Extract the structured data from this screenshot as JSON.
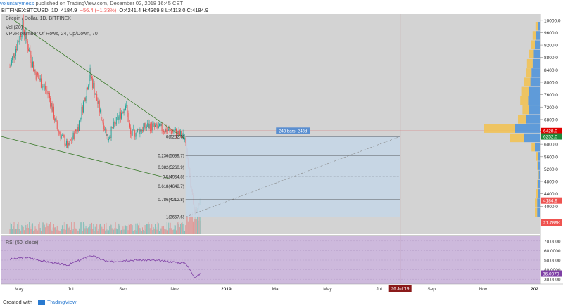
{
  "header": {
    "author": "voluntarymess",
    "published_text": "published on TradingView.com, December 02, 2018 16:45 CET"
  },
  "symbol_bar": {
    "symbol": "BITFINEX:BTCUSD, 1D",
    "last": "4184.9",
    "change": "−56.4 (−1.33%)",
    "ohlc": "O:4241.4 H:4369.8 L:4113.0 C:4184.9"
  },
  "legend": {
    "title": "Bitcoin / Dollar, 1D, BITFINEX",
    "vol": "Vol (20)",
    "vpvr": "VPVR Number Of Rows, 24, Up/Down, 70",
    "rsi": "RSI (50, close)"
  },
  "footer": {
    "created_with": "Created with",
    "brand": "TradingView"
  },
  "colors": {
    "up": "#26a69a",
    "down": "#ef5350",
    "pane_bg": "#d3d3d3",
    "rsi_bg": "#cdb9dc",
    "rsi_line": "#7e3fa5",
    "fib_fill": "#c5d6e6",
    "vpvr_up": "#4a90d9",
    "vpvr_down": "#f2c14e",
    "trendline": "#3a7a2a",
    "hline": "#e00000"
  },
  "chart_data": {
    "type": "candlestick",
    "title": "Bitcoin / Dollar, 1D, BITFINEX",
    "x_ticks": [
      "May",
      "Jul",
      "Sep",
      "Nov",
      "2019",
      "Mar",
      "May",
      "Jul",
      "Sep",
      "Nov",
      "202"
    ],
    "y_ticks": [
      4000,
      4400,
      4800,
      5200,
      5600,
      6000,
      6400,
      6800,
      7200,
      7600,
      8000,
      8400,
      8800,
      9200,
      9600,
      10000
    ],
    "ylim": [
      3100,
      10200
    ],
    "price_path": [
      {
        "date": "2018-04-20",
        "price": 8500
      },
      {
        "date": "2018-05-05",
        "price": 9800
      },
      {
        "date": "2018-05-20",
        "price": 8300
      },
      {
        "date": "2018-06-05",
        "price": 7600
      },
      {
        "date": "2018-06-15",
        "price": 6500
      },
      {
        "date": "2018-06-28",
        "price": 5900
      },
      {
        "date": "2018-07-10",
        "price": 6600
      },
      {
        "date": "2018-07-24",
        "price": 8300
      },
      {
        "date": "2018-08-05",
        "price": 7000
      },
      {
        "date": "2018-08-14",
        "price": 6200
      },
      {
        "date": "2018-09-04",
        "price": 7300
      },
      {
        "date": "2018-09-10",
        "price": 6300
      },
      {
        "date": "2018-10-01",
        "price": 6600
      },
      {
        "date": "2018-10-15",
        "price": 6500
      },
      {
        "date": "2018-11-01",
        "price": 6400
      },
      {
        "date": "2018-11-14",
        "price": 6200
      },
      {
        "date": "2018-11-20",
        "price": 4600
      },
      {
        "date": "2018-11-25",
        "price": 3800
      },
      {
        "date": "2018-12-02",
        "price": 4184.9
      }
    ],
    "price_labels": [
      {
        "text": "6428.0",
        "value": 6428.0,
        "color": "#e00000"
      },
      {
        "text": "6252.0",
        "value": 6252.0,
        "color": "#1e8a3a"
      },
      {
        "text": "4184.9",
        "value": 4184.9,
        "color": "#ef5350"
      }
    ],
    "volume_label": "21.789K",
    "date_marker": "26 Jul '19",
    "projection_label": "243 bars, 243d",
    "fib_levels": [
      {
        "ratio": "0",
        "value": 6252.0,
        "label": "0(6252.0)"
      },
      {
        "ratio": "0.236",
        "value": 5639.7,
        "label": "0.236(5639.7)"
      },
      {
        "ratio": "0.382",
        "value": 5260.9,
        "label": "0.382(5260.9)"
      },
      {
        "ratio": "0.5",
        "value": 4954.8,
        "label": "0.5(4954.8)"
      },
      {
        "ratio": "0.618",
        "value": 4648.7,
        "label": "0.618(4648.7)"
      },
      {
        "ratio": "0.786",
        "value": 4212.8,
        "label": "0.786(4212.8)"
      },
      {
        "ratio": "1",
        "value": 3657.6,
        "label": "1(3657.6)"
      }
    ],
    "hlines": [
      6428.0
    ],
    "rsi": {
      "ylim": [
        25,
        75
      ],
      "y_ticks": [
        30,
        40,
        50,
        60,
        70
      ],
      "last_label": "36.0070",
      "path": [
        {
          "date": "2018-04-20",
          "value": 51
        },
        {
          "date": "2018-05-10",
          "value": 53
        },
        {
          "date": "2018-06-10",
          "value": 47
        },
        {
          "date": "2018-06-28",
          "value": 45
        },
        {
          "date": "2018-07-25",
          "value": 55
        },
        {
          "date": "2018-08-15",
          "value": 48
        },
        {
          "date": "2018-09-05",
          "value": 50
        },
        {
          "date": "2018-10-05",
          "value": 50
        },
        {
          "date": "2018-11-14",
          "value": 47
        },
        {
          "date": "2018-11-25",
          "value": 32
        },
        {
          "date": "2018-12-02",
          "value": 36
        }
      ]
    },
    "vpvr_rows": [
      {
        "price": 9800,
        "up": 0.05,
        "down": 0.04
      },
      {
        "price": 9500,
        "up": 0.08,
        "down": 0.06
      },
      {
        "price": 9200,
        "up": 0.1,
        "down": 0.07
      },
      {
        "price": 8900,
        "up": 0.12,
        "down": 0.08
      },
      {
        "price": 8600,
        "up": 0.14,
        "down": 0.1
      },
      {
        "price": 8300,
        "up": 0.16,
        "down": 0.1
      },
      {
        "price": 8000,
        "up": 0.18,
        "down": 0.12
      },
      {
        "price": 7700,
        "up": 0.2,
        "down": 0.13
      },
      {
        "price": 7400,
        "up": 0.22,
        "down": 0.14
      },
      {
        "price": 7100,
        "up": 0.2,
        "down": 0.12
      },
      {
        "price": 6800,
        "up": 0.25,
        "down": 0.15
      },
      {
        "price": 6500,
        "up": 0.45,
        "down": 0.55
      },
      {
        "price": 6200,
        "up": 0.3,
        "down": 0.25
      },
      {
        "price": 5900,
        "up": 0.1,
        "down": 0.06
      },
      {
        "price": 5600,
        "up": 0.05,
        "down": 0.03
      },
      {
        "price": 5300,
        "up": 0.04,
        "down": 0.02
      },
      {
        "price": 5000,
        "up": 0.03,
        "down": 0.02
      },
      {
        "price": 4700,
        "up": 0.04,
        "down": 0.02
      },
      {
        "price": 4400,
        "up": 0.05,
        "down": 0.03
      },
      {
        "price": 4100,
        "up": 0.06,
        "down": 0.04
      },
      {
        "price": 3800,
        "up": 0.06,
        "down": 0.04
      }
    ]
  }
}
